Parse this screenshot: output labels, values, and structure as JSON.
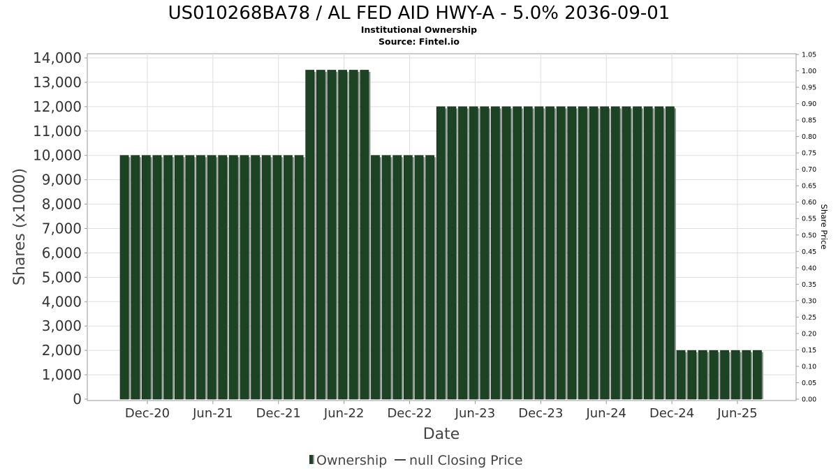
{
  "chart_data": {
    "type": "bar",
    "title": "US010268BA78 / AL FED AID HWY-A - 5.0% 2036-09-01",
    "subtitle_lines": [
      "Institutional Ownership",
      "Source: Fintel.io"
    ],
    "xlabel": "Date",
    "ylabel": "Shares (x1000)",
    "y2label": "Share Price",
    "ylim": [
      0,
      14000
    ],
    "y2lim": [
      0,
      1.05
    ],
    "yticks": [
      0,
      1000,
      2000,
      3000,
      4000,
      5000,
      6000,
      7000,
      8000,
      9000,
      10000,
      11000,
      12000,
      13000,
      14000
    ],
    "ytick_labels": [
      "0",
      "1,000",
      "2,000",
      "3,000",
      "4,000",
      "5,000",
      "6,000",
      "7,000",
      "8,000",
      "9,000",
      "10,000",
      "11,000",
      "12,000",
      "13,000",
      "14,000"
    ],
    "y2tick_labels": [
      "0.00",
      "0.05",
      "0.10",
      "0.15",
      "0.20",
      "0.25",
      "0.30",
      "0.35",
      "0.40",
      "0.45",
      "0.50",
      "0.55",
      "0.60",
      "0.65",
      "0.70",
      "0.75",
      "0.80",
      "0.85",
      "0.90",
      "0.95",
      "1.00",
      "1.05"
    ],
    "xtick_labels": [
      "Dec-20",
      "Jun-21",
      "Dec-21",
      "Jun-22",
      "Dec-22",
      "Jun-23",
      "Dec-23",
      "Jun-24",
      "Dec-24",
      "Jun-25"
    ],
    "grid": true,
    "legend_position": "bottom",
    "series": [
      {
        "name": "Ownership",
        "color": "#1c4424",
        "values": [
          10000,
          10000,
          10000,
          10000,
          10000,
          10000,
          10000,
          10000,
          10000,
          10000,
          10000,
          10000,
          10000,
          10000,
          10000,
          10000,
          10000,
          13500,
          13500,
          13500,
          13500,
          13500,
          13500,
          10000,
          10000,
          10000,
          10000,
          10000,
          10000,
          12000,
          12000,
          12000,
          12000,
          12000,
          12000,
          12000,
          12000,
          12000,
          12000,
          12000,
          12000,
          12000,
          12000,
          12000,
          12000,
          12000,
          12000,
          12000,
          12000,
          12000,
          12000,
          2000,
          2000,
          2000,
          2000,
          2000,
          2000,
          2000,
          2000
        ]
      },
      {
        "name": "null Closing Price",
        "color": "#444444",
        "values": []
      }
    ]
  }
}
